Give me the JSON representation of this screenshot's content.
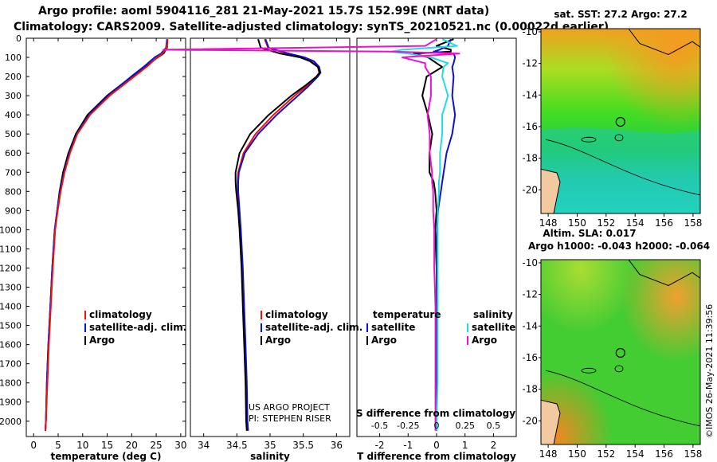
{
  "header": {
    "line1": "Argo profile: aoml 5904116_281 21-May-2021 15.7S 152.99E (NRT data)",
    "line2": "Climatology: CARS2009. Satellite-adjusted climatology: synTS_20210521.nc (0.00022d earlier)"
  },
  "colors": {
    "clim": "#ee1111",
    "sat": "#1111cc",
    "argo": "#000000",
    "sat_sal": "#22dddd",
    "argo_sal": "#ee11cc"
  },
  "chart_data": [
    {
      "id": "temperature",
      "type": "line",
      "xlabel": "temperature (deg C)",
      "ylabel": "",
      "xlim": [
        -1.5,
        31
      ],
      "ylim": [
        2080,
        0
      ],
      "xticks": [
        0,
        5,
        10,
        15,
        20,
        25,
        30
      ],
      "yticks": [
        0,
        100,
        200,
        300,
        400,
        500,
        600,
        700,
        800,
        900,
        1000,
        1100,
        1200,
        1300,
        1400,
        1500,
        1600,
        1700,
        1800,
        1900,
        2000
      ],
      "depth": [
        5,
        50,
        80,
        100,
        150,
        200,
        300,
        400,
        500,
        600,
        700,
        800,
        900,
        1000,
        1200,
        1400,
        1600,
        1800,
        2000,
        2050
      ],
      "legend": [
        "climatology",
        "satellite-adj. clim.",
        "Argo"
      ],
      "series": [
        {
          "name": "climatology",
          "values": [
            27.3,
            27.1,
            26.3,
            25.2,
            23.0,
            20.5,
            15.5,
            11.5,
            8.9,
            7.4,
            6.3,
            5.5,
            4.9,
            4.4,
            3.9,
            3.5,
            3.1,
            2.8,
            2.5,
            2.4
          ]
        },
        {
          "name": "satellite-adj. clim.",
          "values": [
            27.2,
            27.0,
            26.0,
            24.7,
            22.4,
            19.9,
            15.2,
            11.3,
            8.8,
            7.3,
            6.2,
            5.4,
            4.8,
            4.3,
            3.8,
            3.4,
            3.0,
            2.7,
            2.5,
            2.4
          ]
        },
        {
          "name": "Argo",
          "values": [
            27.3,
            27.2,
            26.5,
            25.3,
            22.8,
            20.0,
            15.0,
            11.0,
            8.6,
            7.1,
            6.0,
            5.3,
            4.8,
            4.3,
            3.8,
            3.4,
            3.0,
            2.7,
            2.5,
            2.4
          ]
        }
      ]
    },
    {
      "id": "salinity",
      "type": "line",
      "xlabel": "salinity",
      "ylabel": "",
      "xlim": [
        33.8,
        36.2
      ],
      "ylim": [
        2080,
        0
      ],
      "xticks": [
        34,
        34.5,
        35,
        35.5,
        36
      ],
      "xticklabels": [
        "34",
        "34.5",
        "35",
        "35.5",
        "36"
      ],
      "depth": [
        5,
        50,
        80,
        100,
        120,
        150,
        180,
        200,
        250,
        300,
        400,
        500,
        600,
        700,
        750,
        800,
        900,
        1000,
        1200,
        1400,
        1600,
        1800,
        2000,
        2050
      ],
      "legend": [
        "climatology",
        "satellite-adj. clim.",
        "Argo"
      ],
      "credits": [
        "US ARGO PROJECT",
        "PI: STEPHEN RISER"
      ],
      "series": [
        {
          "name": "climatology",
          "values": [
            34.92,
            34.97,
            35.25,
            35.48,
            35.62,
            35.72,
            35.74,
            35.7,
            35.55,
            35.37,
            35.05,
            34.78,
            34.6,
            34.52,
            34.51,
            34.51,
            34.53,
            34.55,
            34.58,
            34.6,
            34.62,
            34.64,
            34.65,
            34.66
          ]
        },
        {
          "name": "satellite-adj. clim.",
          "values": [
            34.93,
            34.98,
            35.28,
            35.52,
            35.66,
            35.74,
            35.76,
            35.72,
            35.58,
            35.42,
            35.1,
            34.82,
            34.62,
            34.53,
            34.52,
            34.52,
            34.54,
            34.56,
            34.59,
            34.61,
            34.63,
            34.65,
            34.66,
            34.67
          ]
        },
        {
          "name": "Argo",
          "values": [
            34.82,
            34.86,
            35.15,
            35.45,
            35.6,
            35.72,
            35.75,
            35.7,
            35.52,
            35.32,
            34.98,
            34.7,
            34.54,
            34.48,
            34.48,
            34.49,
            34.52,
            34.54,
            34.57,
            34.59,
            34.61,
            34.63,
            34.64,
            34.65
          ]
        }
      ]
    },
    {
      "id": "difference",
      "type": "line",
      "xlabel": "T difference from climatology",
      "xlabel2": "S difference from climatology",
      "xlim": [
        -2.8,
        2.8
      ],
      "ylim": [
        2080,
        0
      ],
      "xticks": [
        -2,
        -1,
        0,
        1,
        2
      ],
      "s_scale_factor": 4,
      "s_ticks": [
        "-0.5",
        "-0.25",
        "0",
        "0.25",
        "0.5"
      ],
      "depth": [
        5,
        40,
        60,
        70,
        80,
        100,
        130,
        150,
        200,
        300,
        400,
        500,
        600,
        700,
        750,
        800,
        900,
        1000,
        1200,
        1400,
        1600,
        1800,
        2000,
        2050
      ],
      "legend_temp": {
        "title": "temperature",
        "items": [
          "satellite",
          "Argo"
        ]
      },
      "legend_sal": {
        "title": "salinity",
        "items": [
          "satellite",
          "Argo"
        ]
      },
      "series": [
        {
          "name": "temperature satellite",
          "values": [
            0.5,
            0.4,
            0.1,
            -0.1,
            0.6,
            0.65,
            0.6,
            0.55,
            0.6,
            0.55,
            0.65,
            0.55,
            0.35,
            0.25,
            0.2,
            0.15,
            0.05,
            0.02,
            0.0,
            0.0,
            0.0,
            0.0,
            0.0,
            0.0
          ]
        },
        {
          "name": "temperature Argo",
          "values": [
            0.6,
            0.0,
            0.5,
            0.5,
            -0.8,
            -0.3,
            0.0,
            0.2,
            -0.35,
            -0.5,
            -0.3,
            -0.15,
            -0.25,
            -0.25,
            -0.1,
            -0.05,
            0.0,
            -0.05,
            0.0,
            0.0,
            0.0,
            0.0,
            0.0,
            0.0
          ]
        },
        {
          "name": "salinity satellite",
          "values": [
            0.05,
            0.18,
            -0.3,
            -0.4,
            -0.25,
            -0.05,
            0.1,
            0.06,
            0.05,
            0.1,
            0.05,
            0.05,
            0.03,
            0.03,
            0.02,
            0.02,
            0.01,
            0.01,
            0.01,
            0.01,
            0.01,
            0.01,
            0.0,
            0.0
          ]
        },
        {
          "name": "salinity Argo",
          "values": [
            0.0,
            -0.1,
            -2.4,
            -0.4,
            0.2,
            -0.3,
            -0.1,
            -0.1,
            -0.05,
            -0.05,
            -0.08,
            -0.06,
            -0.06,
            -0.04,
            -0.04,
            -0.03,
            -0.03,
            -0.02,
            -0.02,
            -0.01,
            -0.01,
            -0.01,
            -0.01,
            -0.01
          ]
        }
      ]
    },
    {
      "id": "map_sst",
      "type": "heatmap",
      "title": "sat. SST: 27.2 Argo: 27.2",
      "xlim": [
        147.5,
        158.5
      ],
      "ylim": [
        -21.5,
        -9.8
      ],
      "xticks": [
        148,
        150,
        152,
        154,
        156,
        158
      ],
      "yticks": [
        -10,
        -12,
        -14,
        -16,
        -18,
        -20
      ],
      "argo_position": [
        152.99,
        -15.7
      ]
    },
    {
      "id": "map_sla",
      "type": "heatmap",
      "title": "Altim. SLA: 0.017",
      "subtitle": "Argo h1000: -0.043 h2000: -0.064",
      "xlim": [
        147.5,
        158.5
      ],
      "ylim": [
        -21.5,
        -9.8
      ],
      "xticks": [
        148,
        150,
        152,
        154,
        156,
        158
      ],
      "yticks": [
        -10,
        -12,
        -14,
        -16,
        -18,
        -20
      ],
      "argo_position": [
        152.99,
        -15.7
      ]
    }
  ],
  "footer": {
    "stamp": "©IMOS 26-May-2021 11:39:56"
  }
}
